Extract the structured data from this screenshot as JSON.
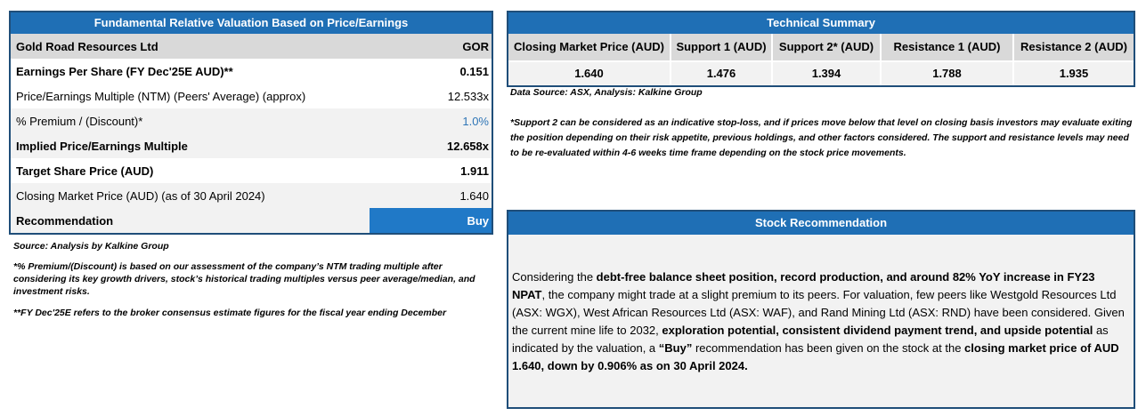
{
  "valuation": {
    "title": "Fundamental Relative Valuation Based on Price/Earnings",
    "company": "Gold Road Resources Ltd",
    "ticker": "GOR",
    "rows": [
      {
        "label": "Earnings Per Share (FY Dec'25E AUD)**",
        "value": "0.151"
      },
      {
        "label": "Price/Earnings Multiple (NTM) (Peers' Average) (approx)",
        "value": "12.533x"
      },
      {
        "label": "% Premium / (Discount)*",
        "value": "1.0%"
      },
      {
        "label": "Implied Price/Earnings Multiple",
        "value": "12.658x"
      },
      {
        "label": "Target Share Price (AUD)",
        "value": "1.911"
      },
      {
        "label": "Closing Market Price (AUD) (as of 30 April 2024)",
        "value": "1.640"
      }
    ],
    "recommendation_label": "Recommendation",
    "recommendation_value": "Buy"
  },
  "notes": {
    "source": "Source: Analysis by Kalkine Group",
    "premium_note": "*% Premium/(Discount) is based on our assessment of the company’s NTM trading multiple after considering its key growth drivers, stock’s historical trading multiples versus peer average/median, and investment risks.",
    "fy_note": "**FY Dec'25E refers to the broker consensus estimate figures for the fiscal year ending December"
  },
  "technical": {
    "title": "Technical Summary",
    "columns": [
      {
        "label": "Closing Market Price (AUD)",
        "value": "1.640"
      },
      {
        "label": "Support 1 (AUD)",
        "value": "1.476"
      },
      {
        "label": "Support 2* (AUD)",
        "value": "1.394"
      },
      {
        "label": "Resistance 1 (AUD)",
        "value": "1.788"
      },
      {
        "label": "Resistance 2 (AUD)",
        "value": "1.935"
      }
    ],
    "source": "Data Source: ASX, Analysis: Kalkine Group",
    "note": "*Support 2 can be considered as an indicative stop-loss, and if prices move below that level on closing basis investors may evaluate exiting the position depending on their risk appetite, previous holdings, and other factors considered. The support and resistance levels may need to be re-evaluated within 4-6 weeks time frame depending on the stock price movements."
  },
  "stock_rec": {
    "title": "Stock Recommendation",
    "p1": "Considering the ",
    "b1": "debt-free balance sheet position, record production, and around 82% YoY increase in FY23 NPAT",
    "p2": ", the company might trade at a slight premium to its peers. For valuation, few peers like Westgold Resources Ltd (ASX: WGX), West African Resources Ltd (ASX: WAF), and Rand Mining Ltd (ASX: RND) have been considered. Given the current mine life to 2032, ",
    "b2": "exploration potential, consistent dividend payment trend, and upside potential",
    "p3": " as indicated by the valuation, a ",
    "b3": "“Buy”",
    "p4": " recommendation has been given on the stock at the ",
    "b4": "closing market price of AUD 1.640, down by 0.906% as on 30 April 2024."
  }
}
